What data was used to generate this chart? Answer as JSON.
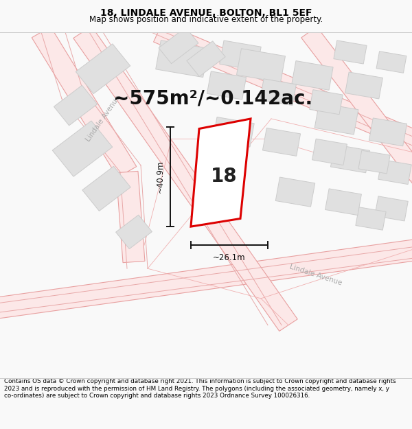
{
  "title": "18, LINDALE AVENUE, BOLTON, BL1 5EF",
  "subtitle": "Map shows position and indicative extent of the property.",
  "area_text": "~575m²/~0.142ac.",
  "width_label": "~26.1m",
  "height_label": "~40.9m",
  "number_label": "18",
  "footer_text": "Contains OS data © Crown copyright and database right 2021. This information is subject to Crown copyright and database rights 2023 and is reproduced with the permission of HM Land Registry. The polygons (including the associated geometry, namely x, y co-ordinates) are subject to Crown copyright and database rights 2023 Ordnance Survey 100026316.",
  "bg_color": "#f9f9f9",
  "map_bg": "#ffffff",
  "road_fill": "#fce8e8",
  "road_line": "#e8a0a0",
  "building_fill": "#e0e0e0",
  "building_edge": "#cccccc",
  "plot_color": "#dd0000",
  "plot_fill": "#ffffff",
  "dim_color": "#111111",
  "street_label_color": "#aaaaaa",
  "title_fontsize": 10,
  "subtitle_fontsize": 8.5,
  "area_fontsize": 20,
  "dim_fontsize": 8.5,
  "number_fontsize": 20,
  "footer_fontsize": 6.3,
  "street_fontsize": 7.5
}
